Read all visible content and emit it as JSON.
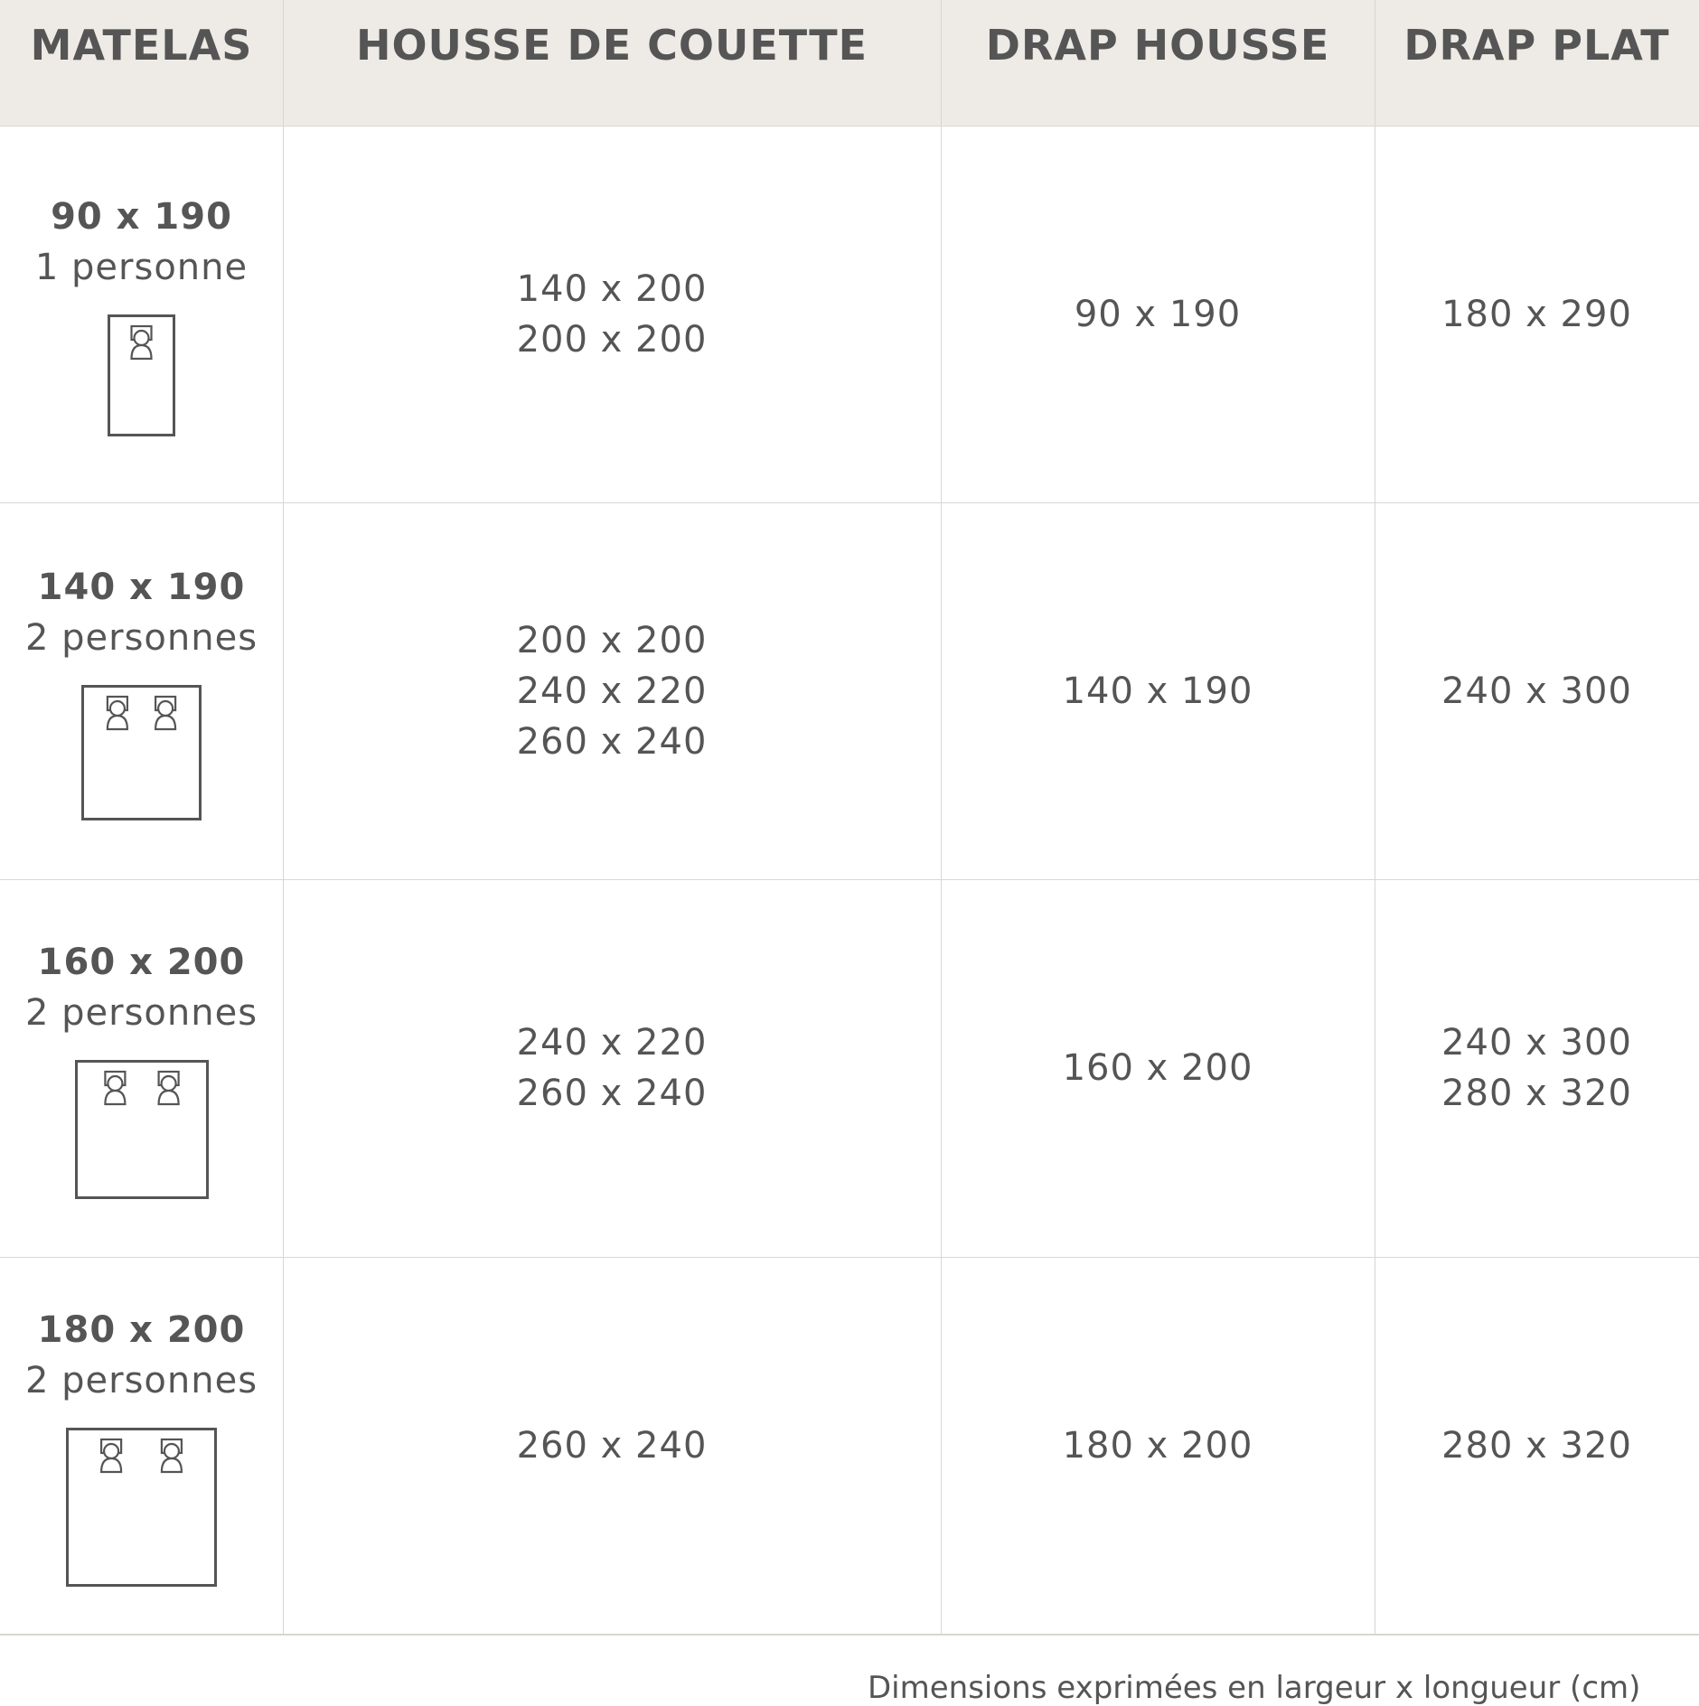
{
  "headers": [
    "MATELAS",
    "HOUSSE DE COUETTE",
    "DRAP HOUSSE",
    "DRAP PLAT"
  ],
  "rows": [
    {
      "matelas": "90 x 190",
      "people": "1 personne",
      "sleepers": 1,
      "housse": [
        "140 x 200",
        "200 x 200"
      ],
      "drap_housse": [
        "90 x 190"
      ],
      "drap_plat": [
        "180 x 290"
      ]
    },
    {
      "matelas": "140 x 190",
      "people": "2 personnes",
      "sleepers": 2,
      "housse": [
        "200 x 200",
        "240 x 220",
        "260 x 240"
      ],
      "drap_housse": [
        "140 x 190"
      ],
      "drap_plat": [
        "240 x 300"
      ]
    },
    {
      "matelas": "160 x 200",
      "people": "2 personnes",
      "sleepers": 2,
      "housse": [
        "240 x 220",
        "260 x 240"
      ],
      "drap_housse": [
        "160 x 200"
      ],
      "drap_plat": [
        "240 x 300",
        "280 x 320"
      ]
    },
    {
      "matelas": "180 x 200",
      "people": "2 personnes",
      "sleepers": 2,
      "housse": [
        "260 x 240"
      ],
      "drap_housse": [
        "180 x 200"
      ],
      "drap_plat": [
        "280 x 320"
      ]
    }
  ],
  "footer": "Dimensions exprimées en largeur x longueur (cm)",
  "colors": {
    "header_bg": "#eeeae5",
    "text": "#555555",
    "border": "#d9d6d2"
  },
  "icons": [
    "bed-single-icon",
    "bed-double-icon"
  ]
}
